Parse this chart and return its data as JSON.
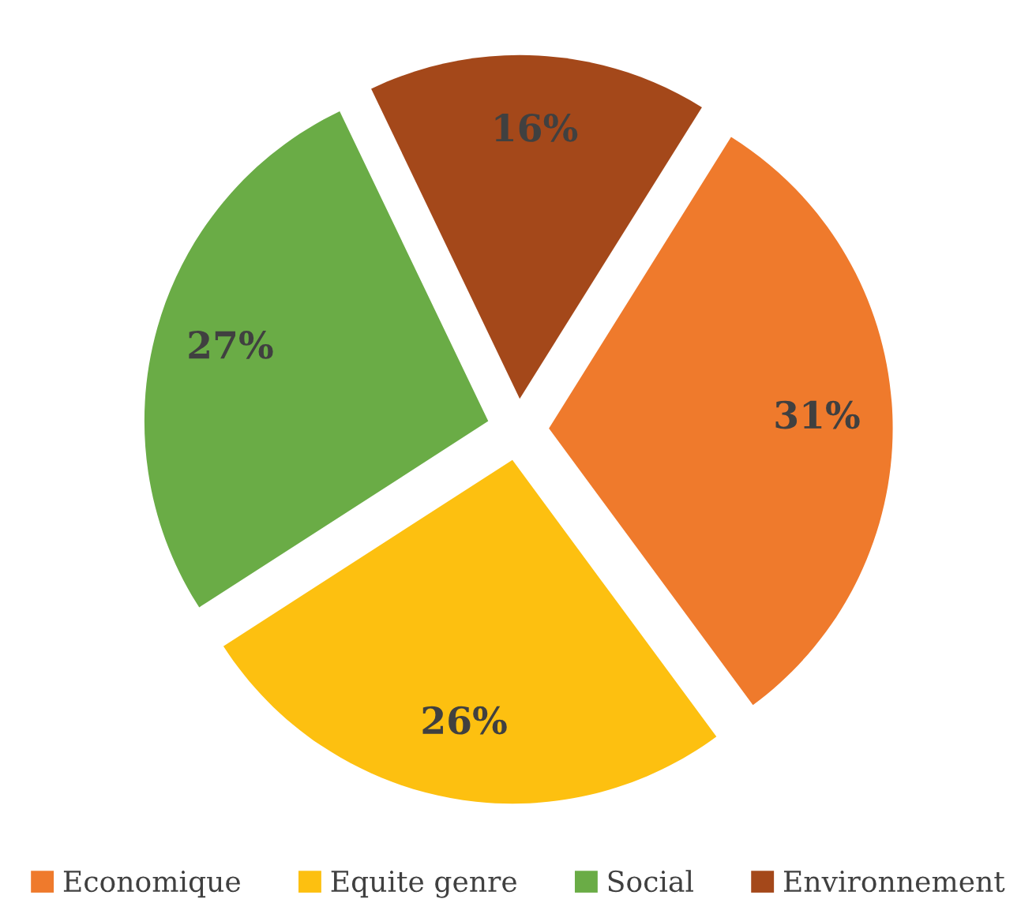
{
  "chart_data": {
    "type": "pie",
    "categories": [
      "Economique",
      "Equite genre",
      "Social",
      "Environnement"
    ],
    "values": [
      31,
      26,
      27,
      16
    ],
    "colors": [
      "#ef7a2c",
      "#fdc010",
      "#6aac46",
      "#a4481a"
    ],
    "value_labels": [
      "31%",
      "26%",
      "27%",
      "16%"
    ],
    "legend": "bottom"
  }
}
